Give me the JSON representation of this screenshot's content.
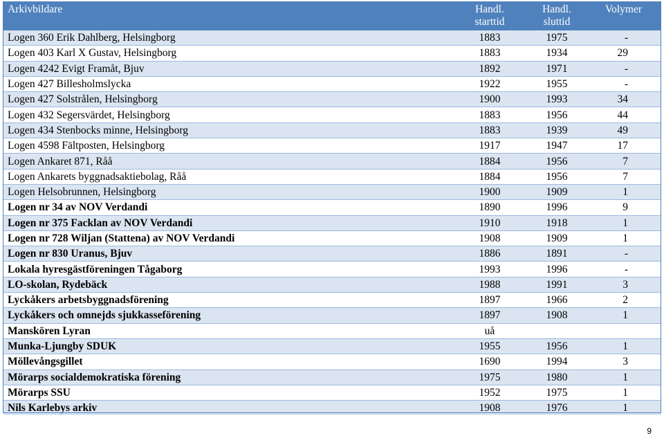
{
  "table": {
    "headers": {
      "name": "Arkivbildare",
      "start": "Handl. starttid",
      "end": "Handl. sluttid",
      "volumes": "Volymer"
    },
    "rows": [
      {
        "name": "Logen 360 Erik Dahlberg, Helsingborg",
        "start": "1883",
        "end": "1975",
        "volumes": "-"
      },
      {
        "name": "Logen 403 Karl X Gustav, Helsingborg",
        "start": "1883",
        "end": "1934",
        "volumes": "29"
      },
      {
        "name": "Logen 4242 Evigt Framåt, Bjuv",
        "start": "1892",
        "end": "1971",
        "volumes": "-"
      },
      {
        "name": "Logen 427 Billesholmslycka",
        "start": "1922",
        "end": "1955",
        "volumes": "-"
      },
      {
        "name": "Logen 427 Solstrålen, Helsingborg",
        "start": "1900",
        "end": "1993",
        "volumes": "34"
      },
      {
        "name": "Logen 432 Segersvärdet, Helsingborg",
        "start": "1883",
        "end": "1956",
        "volumes": "44"
      },
      {
        "name": "Logen 434 Stenbocks minne, Helsingborg",
        "start": "1883",
        "end": "1939",
        "volumes": "49"
      },
      {
        "name": "Logen 4598 Fältposten, Helsingborg",
        "start": "1917",
        "end": "1947",
        "volumes": "17"
      },
      {
        "name": "Logen Ankaret 871, Råå",
        "start": "1884",
        "end": "1956",
        "volumes": "7"
      },
      {
        "name": "Logen Ankarets byggnadsaktiebolag, Råå",
        "start": "1884",
        "end": "1956",
        "volumes": "7"
      },
      {
        "name": "Logen Helsobrunnen, Helsingborg",
        "start": "1900",
        "end": "1909",
        "volumes": "1"
      },
      {
        "name": "Logen nr 34 av NOV Verdandi",
        "start": "1890",
        "end": "1996",
        "volumes": "9"
      },
      {
        "name": "Logen nr 375 Facklan av NOV Verdandi",
        "start": "1910",
        "end": "1918",
        "volumes": "1"
      },
      {
        "name": "Logen nr 728 Wiljan (Stattena) av NOV Verdandi",
        "start": "1908",
        "end": "1909",
        "volumes": "1"
      },
      {
        "name": "Logen nr 830 Uranus, Bjuv",
        "start": "1886",
        "end": "1891",
        "volumes": "-"
      },
      {
        "name": "Lokala hyresgästföreningen Tågaborg",
        "start": "1993",
        "end": "1996",
        "volumes": "-"
      },
      {
        "name": "LO-skolan, Rydebäck",
        "start": "1988",
        "end": "1991",
        "volumes": "3"
      },
      {
        "name": "Lyckåkers arbetsbyggnadsförening",
        "start": "1897",
        "end": "1966",
        "volumes": "2"
      },
      {
        "name": "Lyckåkers och omnejds sjukkasseförening",
        "start": "1897",
        "end": "1908",
        "volumes": "1"
      },
      {
        "name": "Manskören Lyran",
        "start": "uå",
        "end": "",
        "volumes": ""
      },
      {
        "name": "Munka-Ljungby SDUK",
        "start": "1955",
        "end": "1956",
        "volumes": "1"
      },
      {
        "name": "Möllevångsgillet",
        "start": "1690",
        "end": "1994",
        "volumes": "3"
      },
      {
        "name": "Mörarps socialdemokratiska förening",
        "start": "1975",
        "end": "1980",
        "volumes": "1"
      },
      {
        "name": "Mörarps SSU",
        "start": "1952",
        "end": "1975",
        "volumes": "1"
      },
      {
        "name": "Nils Karlebys arkiv",
        "start": "1908",
        "end": "1976",
        "volumes": "1"
      }
    ]
  },
  "footer": {
    "page_number": "9"
  },
  "colors": {
    "header_background": "#4f81bd",
    "shaded_row": "#dbe5f1"
  }
}
